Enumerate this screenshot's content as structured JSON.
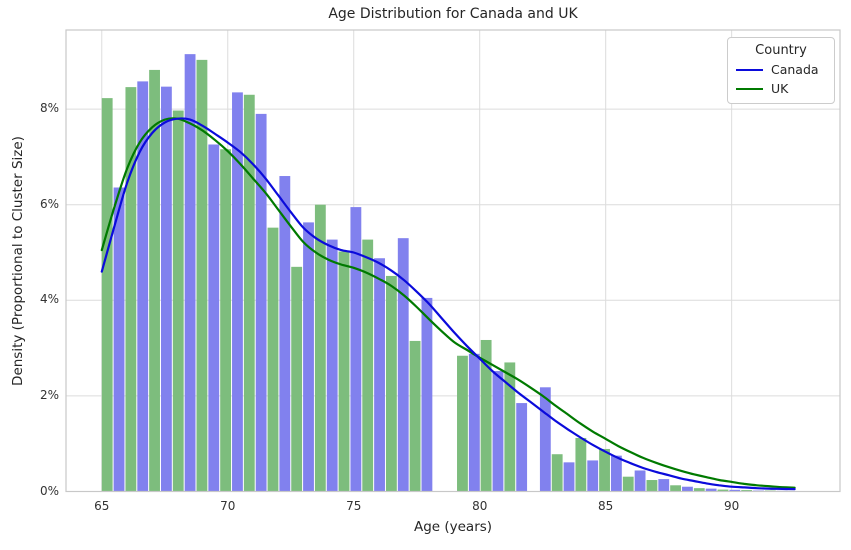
{
  "title": "Age Distribution for Canada and UK",
  "xlabel": "Age (years)",
  "ylabel": "Density (Proportional to Cluster Size)",
  "legend": {
    "title": "Country",
    "items": [
      {
        "label": "Canada",
        "color": "#0b0bdb"
      },
      {
        "label": "UK",
        "color": "#007a00"
      }
    ]
  },
  "colors": {
    "canada_bar": "#8181ee",
    "uk_bar": "#7dbd7d",
    "canada_line": "#0b0bdb",
    "uk_line": "#007a00",
    "grid": "#dcdcdc",
    "spine": "#c8c8c8",
    "tick_text": "#333333"
  },
  "chart_data": {
    "type": "histogram+kde",
    "title": "Age Distribution for Canada and UK",
    "xlabel": "Age (years)",
    "ylabel": "Density (Proportional to Cluster Size)",
    "x_ticks": [
      65,
      70,
      75,
      80,
      85,
      90
    ],
    "y_ticks_pct": [
      0,
      2,
      4,
      6,
      8
    ],
    "y_tick_labels": [
      "0%",
      "2%",
      "4%",
      "6%",
      "8%"
    ],
    "xlim": [
      63.58,
      94.3
    ],
    "ylim_pct": [
      0,
      9.655
    ],
    "grid": true,
    "legend_position": "upper right",
    "bin_width_years": 1,
    "dodge_order": [
      "UK",
      "Canada"
    ],
    "age_bins": [
      65,
      66,
      67,
      68,
      69,
      70,
      71,
      72,
      73,
      74,
      75,
      76,
      77,
      78,
      79,
      80,
      81,
      82,
      83,
      84,
      85,
      86,
      87,
      88,
      89,
      90,
      91,
      92,
      93
    ],
    "uk_hist_pct": [
      8.23,
      8.46,
      8.82,
      7.97,
      9.03,
      7.16,
      8.3,
      5.52,
      4.7,
      6.0,
      5.02,
      5.27,
      4.51,
      3.15,
      null,
      2.84,
      3.17,
      2.7,
      null,
      0.78,
      1.12,
      0.89,
      0.31,
      0.24,
      0.13,
      0.07,
      0.04,
      0.03,
      0.02
    ],
    "canada_hist_pct": [
      6.36,
      8.58,
      8.47,
      9.15,
      7.26,
      8.35,
      7.9,
      6.6,
      5.63,
      5.27,
      5.95,
      4.88,
      5.3,
      4.05,
      null,
      2.88,
      2.52,
      1.85,
      2.18,
      0.61,
      0.65,
      0.75,
      0.44,
      0.26,
      0.1,
      0.06,
      0.035,
      0.02,
      0.015
    ],
    "kde_age_start": 65,
    "kde_age_step": 0.5,
    "canada_kde_pct": [
      4.6,
      5.55,
      6.45,
      7.1,
      7.5,
      7.72,
      7.8,
      7.78,
      7.65,
      7.48,
      7.3,
      7.1,
      6.85,
      6.55,
      6.2,
      5.85,
      5.52,
      5.3,
      5.15,
      5.05,
      5.0,
      4.9,
      4.78,
      4.62,
      4.42,
      4.18,
      3.92,
      3.62,
      3.32,
      3.04,
      2.78,
      2.52,
      2.3,
      2.08,
      1.88,
      1.68,
      1.48,
      1.3,
      1.13,
      0.97,
      0.83,
      0.7,
      0.59,
      0.49,
      0.41,
      0.34,
      0.27,
      0.22,
      0.17,
      0.13,
      0.1,
      0.085,
      0.07,
      0.06,
      0.055,
      0.05
    ],
    "uk_kde_pct": [
      5.05,
      5.95,
      6.75,
      7.3,
      7.62,
      7.78,
      7.8,
      7.7,
      7.55,
      7.35,
      7.12,
      6.85,
      6.55,
      6.25,
      5.9,
      5.55,
      5.22,
      5.0,
      4.85,
      4.75,
      4.68,
      4.58,
      4.45,
      4.3,
      4.1,
      3.86,
      3.6,
      3.35,
      3.12,
      2.96,
      2.8,
      2.65,
      2.5,
      2.35,
      2.18,
      2.0,
      1.8,
      1.61,
      1.42,
      1.25,
      1.1,
      0.95,
      0.82,
      0.7,
      0.6,
      0.51,
      0.43,
      0.36,
      0.3,
      0.24,
      0.2,
      0.16,
      0.13,
      0.11,
      0.09,
      0.08
    ]
  }
}
